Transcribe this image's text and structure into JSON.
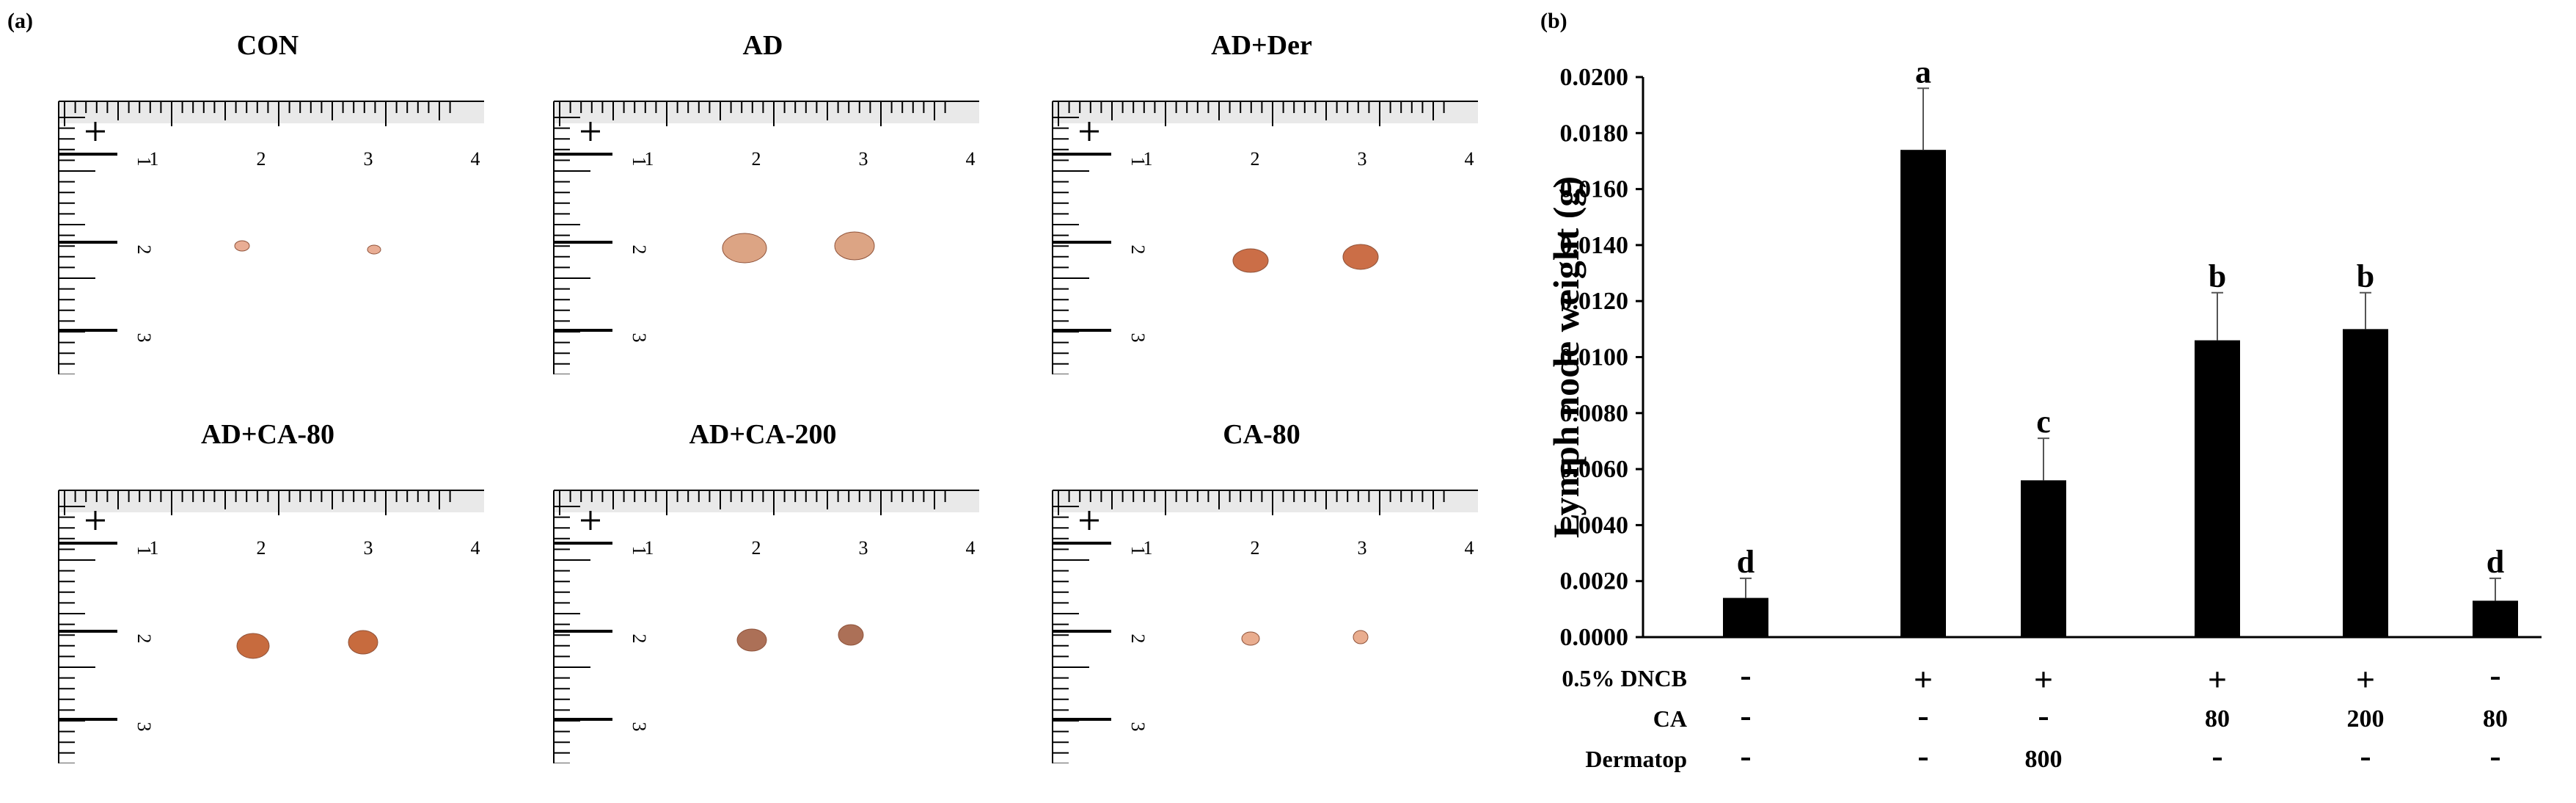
{
  "panel_a": {
    "label": "(a)",
    "cells": [
      {
        "title": "CON",
        "node_color": "#e8a98f"
      },
      {
        "title": "AD",
        "node_color": "#dba07e"
      },
      {
        "title": "AD+Der",
        "node_color": "#c9673e"
      },
      {
        "title": "AD+CA-80",
        "node_color": "#c56434"
      },
      {
        "title": "AD+CA-200",
        "node_color": "#a8694f"
      },
      {
        "title": "CA-80",
        "node_color": "#e8a98a"
      }
    ],
    "ruler_top_labels": [
      "1",
      "2",
      "3",
      "4"
    ],
    "ruler_side_labels": [
      "1",
      "2",
      "3"
    ]
  },
  "panel_b": {
    "label": "(b)",
    "row_labels": [
      "0.5% DNCB",
      "CA",
      "Dermatop"
    ],
    "row_values": [
      [
        "-",
        "+",
        "+",
        "+",
        "+",
        "-"
      ],
      [
        "-",
        "-",
        "-",
        "80",
        "200",
        "80"
      ],
      [
        "-",
        "-",
        "800",
        "-",
        "-",
        "-"
      ]
    ]
  },
  "chart_data": {
    "type": "bar",
    "title": "",
    "xlabel": "",
    "ylabel": "Lymph node weight (g)",
    "ylim": [
      0,
      0.02
    ],
    "yticks": [
      "0.0000",
      "0.0020",
      "0.0040",
      "0.0060",
      "0.0080",
      "0.0100",
      "0.0120",
      "0.0140",
      "0.0160",
      "0.0180",
      "0.0200"
    ],
    "values": [
      0.0014,
      0.0174,
      0.0056,
      0.0106,
      0.011,
      0.0013
    ],
    "errors": [
      0.0007,
      0.0022,
      0.0015,
      0.0017,
      0.0013,
      0.0008
    ],
    "significance": [
      "d",
      "a",
      "c",
      "b",
      "b",
      "d"
    ],
    "bar_color": "#000000",
    "grid": false
  }
}
